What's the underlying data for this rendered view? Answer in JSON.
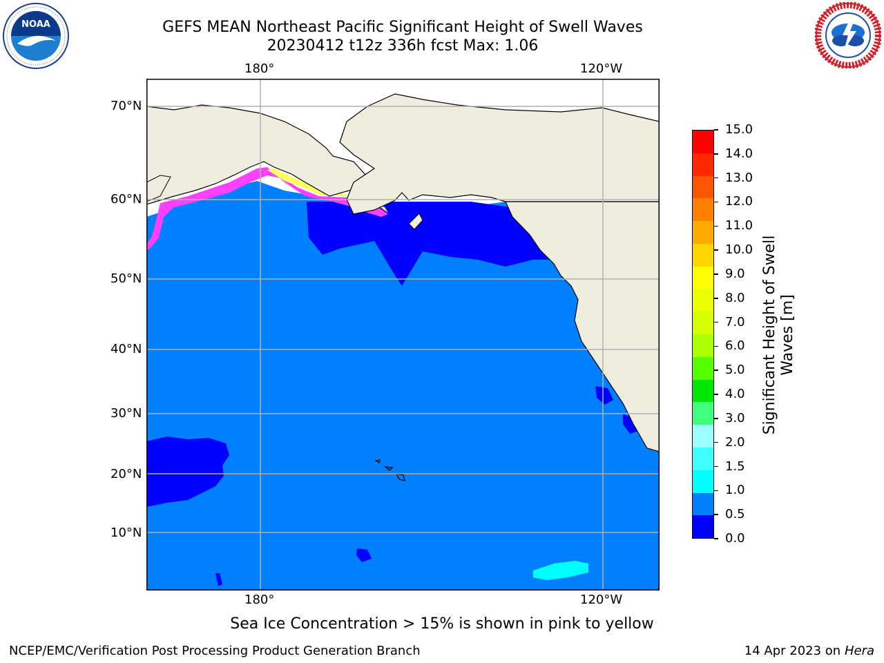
{
  "header": {
    "title_line1": "GEFS MEAN Northeast Pacific Significant Height of Swell Waves",
    "title_line2": "20230412 t12z 336h fcst   Max: 1.06"
  },
  "logos": {
    "left": {
      "text": "NOAA",
      "ring_text": "NATIONAL OCEANIC AND ATMOSPHERIC ADMINISTRATION · U.S. DEPARTMENT OF COMMERCE"
    },
    "right": {
      "ring_text": "NATIONAL WEATHER SERVICE"
    }
  },
  "map": {
    "lon_ticks_top": [
      "180°",
      "120°W"
    ],
    "lon_ticks_bottom": [
      "180°",
      "120°W"
    ],
    "lat_ticks": [
      "70°N",
      "60°N",
      "50°N",
      "40°N",
      "30°N",
      "20°N",
      "10°N"
    ],
    "colors": {
      "ocean_main": "#0080ff",
      "ocean_low": "#0000ff",
      "ocean_high": "#00ffff",
      "land": "#efedde",
      "ice": "#ffffff",
      "ice_pink": "#ff40ff",
      "ice_yellow": "#ffff00",
      "grid": "#b0b0b0"
    }
  },
  "colorbar": {
    "label": "Significant Height of Swell Waves [m]",
    "ticks": [
      "15.0",
      "14.0",
      "13.0",
      "12.0",
      "11.0",
      "10.0",
      "9.0",
      "8.0",
      "7.0",
      "6.0",
      "5.0",
      "4.0",
      "3.0",
      "2.0",
      "1.5",
      "1.0",
      "0.5",
      "0.0"
    ],
    "colors_top_to_bottom": [
      "#ff0000",
      "#ff2a00",
      "#ff5500",
      "#ff8000",
      "#ffaa00",
      "#ffd500",
      "#ffff00",
      "#eaff00",
      "#d5ff00",
      "#aaff00",
      "#55ff00",
      "#00e800",
      "#40ff80",
      "#9fffff",
      "#40ffff",
      "#00ffff",
      "#0080ff",
      "#0000ff"
    ]
  },
  "note": "Sea Ice Concentration > 15% is shown in pink to yellow",
  "footer": {
    "left": "NCEP/EMC/Verification Post Processing Product Generation Branch",
    "right_date": "14 Apr 2023 on ",
    "right_machine": "Hera"
  }
}
